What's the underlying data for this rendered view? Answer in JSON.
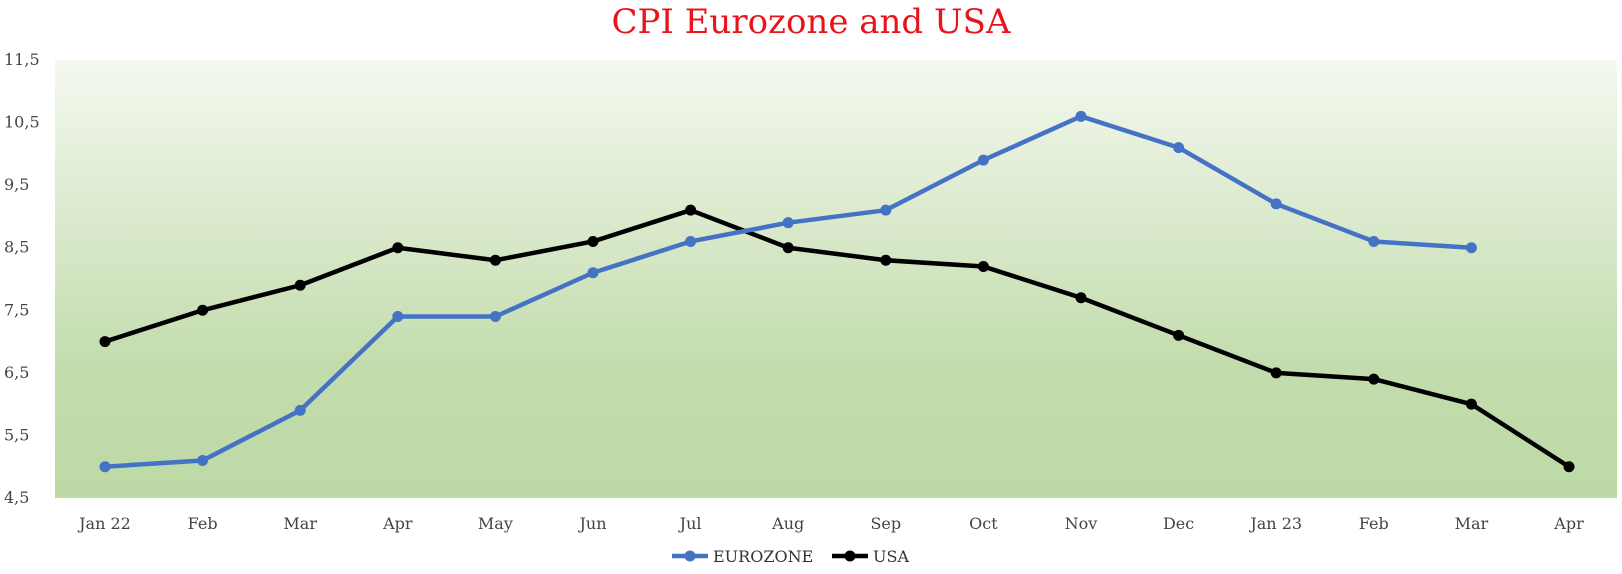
{
  "chart_data": {
    "type": "line",
    "title": "CPI Eurozone and USA",
    "categories": [
      "Jan 22",
      "Feb",
      "Mar",
      "Apr",
      "May",
      "Jun",
      "Jul",
      "Aug",
      "Sep",
      "Oct",
      "Nov",
      "Dec",
      "Jan 23",
      "Feb",
      "Mar",
      "Apr"
    ],
    "ylim": [
      4.5,
      11.5
    ],
    "yticks": [
      "11,5",
      "10,5",
      "9,5",
      "8,5",
      "7,5",
      "6,5",
      "5,5",
      "4,5"
    ],
    "ytick_values": [
      11.5,
      10.5,
      9.5,
      8.5,
      7.5,
      6.5,
      5.5,
      4.5
    ],
    "grid": false,
    "legend_position": "bottom",
    "series": [
      {
        "name": "EUROZONE",
        "color": "#4472c4",
        "values": [
          5.0,
          5.1,
          5.9,
          7.4,
          7.4,
          8.1,
          8.6,
          8.9,
          9.1,
          9.9,
          10.6,
          10.1,
          9.2,
          8.6,
          8.5,
          null
        ]
      },
      {
        "name": "USA",
        "color": "#000000",
        "values": [
          7.0,
          7.5,
          7.9,
          8.5,
          8.3,
          8.6,
          9.1,
          8.5,
          8.3,
          8.2,
          7.7,
          7.1,
          6.5,
          6.4,
          6.0,
          5.0
        ]
      }
    ],
    "colors": {
      "title": "#e8141b",
      "plot_gradient_top": "#f4f8ef",
      "plot_gradient_bottom": "#bdd9a6"
    }
  }
}
